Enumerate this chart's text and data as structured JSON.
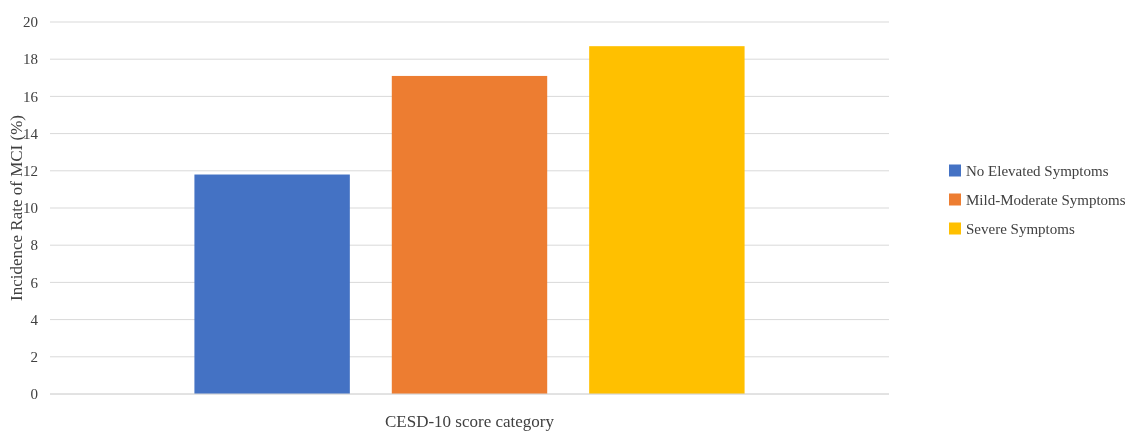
{
  "chart_data": {
    "type": "bar",
    "xlabel": "CESD-10 score category",
    "ylabel": "Incidence Rate of MCI (%)",
    "categories": [
      null
    ],
    "series": [
      {
        "name": "No Elevated Symptoms",
        "color": "#4472c4",
        "values": [
          11.8
        ]
      },
      {
        "name": "Mild-Moderate Symptoms",
        "color": "#ed7d31",
        "values": [
          17.1
        ]
      },
      {
        "name": "Severe Symptoms",
        "color": "#ffc000",
        "values": [
          18.7
        ]
      }
    ],
    "ylim": [
      0,
      20
    ],
    "yticks": [
      0,
      2,
      4,
      6,
      8,
      10,
      12,
      14,
      16,
      18,
      20
    ],
    "grid": "y",
    "legend": "right"
  }
}
